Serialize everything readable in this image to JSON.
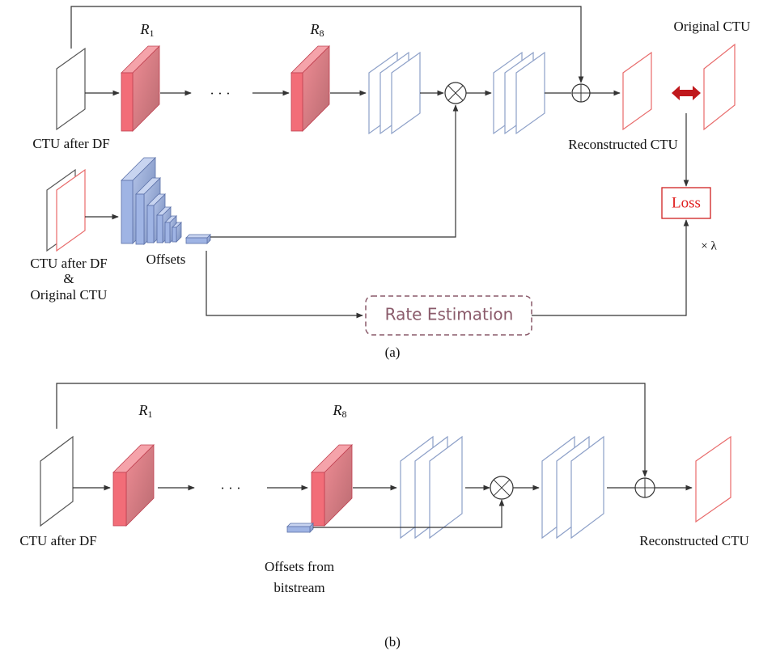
{
  "panel_a": {
    "label": "(a)",
    "input_label": "CTU after DF",
    "r_first": {
      "symbol": "R",
      "index": "1"
    },
    "r_last": {
      "symbol": "R",
      "index": "8"
    },
    "ellipsis": "· · ·",
    "original_label": "Original CTU",
    "reconstructed_label": "Reconstructed CTU",
    "loss": "Loss",
    "lambda": "× λ",
    "input2_label": [
      "CTU after DF",
      "&",
      "Original CTU"
    ],
    "offsets_label": "Offsets",
    "rate_estimation": "Rate Estimation"
  },
  "panel_b": {
    "label": "(b)",
    "input_label": "CTU after DF",
    "r_first": {
      "symbol": "R",
      "index": "1"
    },
    "r_last": {
      "symbol": "R",
      "index": "8"
    },
    "ellipsis": "· · ·",
    "reconstructed_label": "Reconstructed CTU",
    "offsets_label": [
      "Offsets from",
      "bitstream"
    ]
  }
}
